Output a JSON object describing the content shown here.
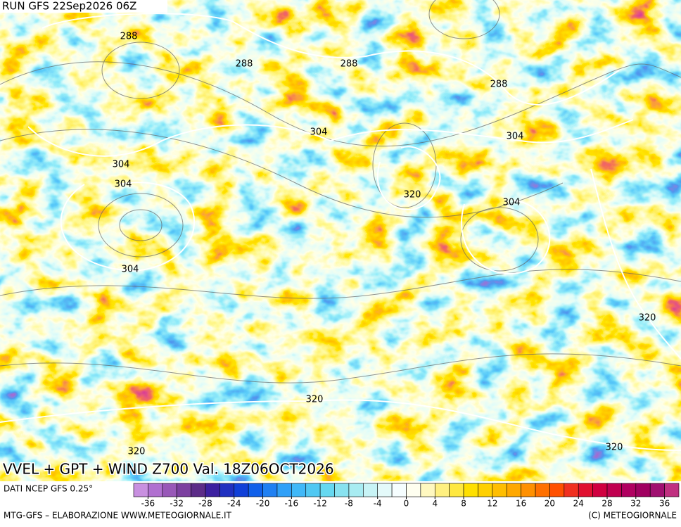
{
  "header": {
    "run": "RUN GFS 22Sep2026 06Z"
  },
  "map": {
    "contour_labels": [
      "288",
      "288",
      "288",
      "288",
      "304",
      "304",
      "304",
      "304",
      "304",
      "304",
      "320",
      "320",
      "320",
      "320",
      "320"
    ],
    "title": "VVEL + GPT + WIND Z700 Val. 18Z06OCT2026"
  },
  "colorbar": {
    "source": "DATI NCEP GFS 0.25°",
    "lim": [
      -38,
      38
    ],
    "step": 2,
    "ticks": [
      -36,
      -32,
      -28,
      -24,
      -20,
      -16,
      -12,
      -8,
      -4,
      0,
      4,
      8,
      12,
      16,
      20,
      24,
      28,
      32,
      36
    ],
    "colors": [
      "#c890e0",
      "#b070d0",
      "#9858b8",
      "#7c40a0",
      "#5c2c88",
      "#3c20a0",
      "#2030c0",
      "#1040d8",
      "#1060ea",
      "#2080f2",
      "#30a0f8",
      "#40b8f8",
      "#50c8f2",
      "#66d8f0",
      "#88e2f0",
      "#a8ecf2",
      "#c8f4f6",
      "#e4fafa",
      "#f6feff",
      "#fffff0",
      "#fff8c0",
      "#fff080",
      "#ffe840",
      "#ffe000",
      "#ffd000",
      "#ffbe00",
      "#ffa800",
      "#ff9000",
      "#ff7000",
      "#ff5000",
      "#f03020",
      "#e01030",
      "#d00040",
      "#c00050",
      "#b00060",
      "#a00060",
      "#a01070",
      "#c03080"
    ]
  },
  "footer": {
    "left": "MTG-GFS – ELABORAZIONE WWW.METEOGIORNALE.IT",
    "right": "(C) METEOGIORNALE"
  }
}
